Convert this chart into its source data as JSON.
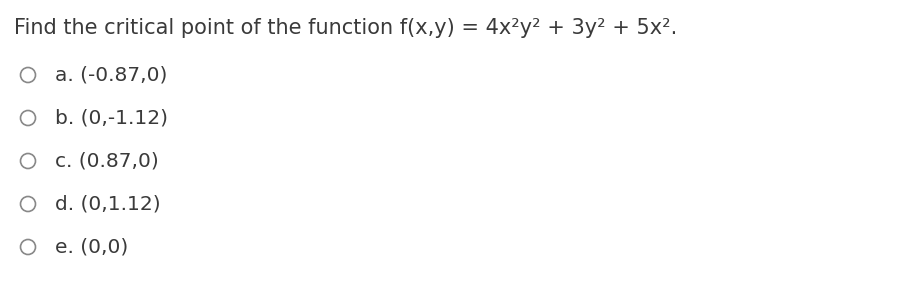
{
  "title_text": "Find the critical point of the function f(x,y) = 4x²y² + 3y² + 5x².",
  "options": [
    "a. (-0.87,0)",
    "b. (0,-1.12)",
    "c. (0.87,0)",
    "d. (0,1.12)",
    "e. (0,0)"
  ],
  "background_color": "#ffffff",
  "text_color": "#3a3a3a",
  "circle_color": "#888888",
  "title_fontsize": 15.0,
  "option_fontsize": 14.5,
  "fig_width": 9.14,
  "fig_height": 3.0,
  "dpi": 100
}
